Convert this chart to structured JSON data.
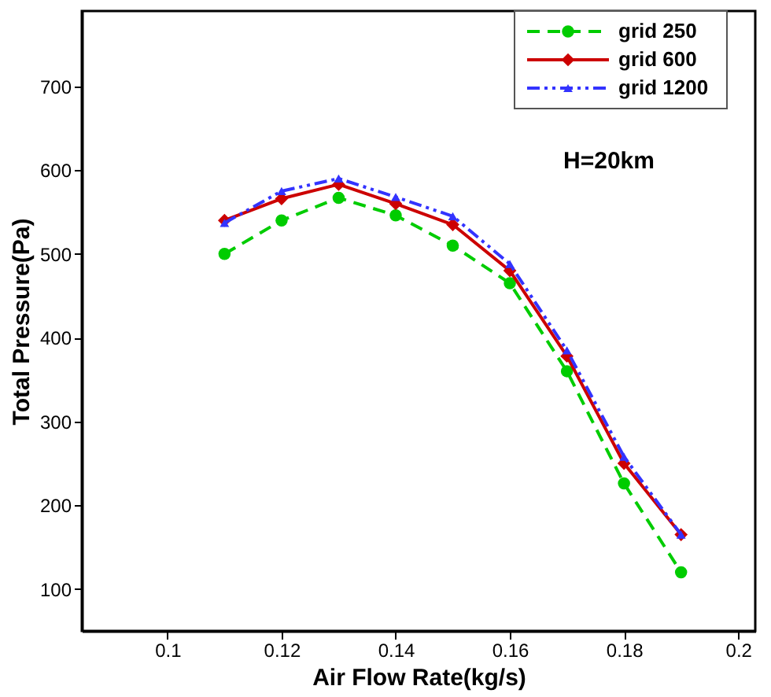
{
  "chart_data": {
    "type": "line",
    "xlabel": "Air Flow Rate(kg/s)",
    "ylabel": "Total Pressure(Pa)",
    "x": [
      0.11,
      0.12,
      0.13,
      0.14,
      0.15,
      0.16,
      0.17,
      0.18,
      0.19
    ],
    "series": [
      {
        "name": "grid 250",
        "color": "#00cc00",
        "marker": "circle",
        "line_style": "dashed",
        "values": [
          500,
          540,
          567,
          546,
          510,
          465,
          360,
          226,
          120
        ]
      },
      {
        "name": "grid 600",
        "color": "#cc0000",
        "marker": "diamond",
        "line_style": "solid",
        "values": [
          540,
          566,
          583,
          560,
          535,
          480,
          378,
          250,
          165
        ]
      },
      {
        "name": "grid 1200",
        "color": "#3333ff",
        "marker": "triangle",
        "line_style": "dashdotdot",
        "values": [
          537,
          575,
          590,
          568,
          545,
          488,
          385,
          258,
          165
        ]
      }
    ],
    "xlim": [
      0.085,
      0.203
    ],
    "xticks": [
      0.1,
      0.12,
      0.14,
      0.16,
      0.18,
      0.2
    ],
    "ylim": [
      50,
      790
    ],
    "yticks": [
      100,
      200,
      300,
      400,
      500,
      600,
      700
    ],
    "annotations": [
      "H=20km"
    ],
    "legend": "top right",
    "grid": false
  }
}
